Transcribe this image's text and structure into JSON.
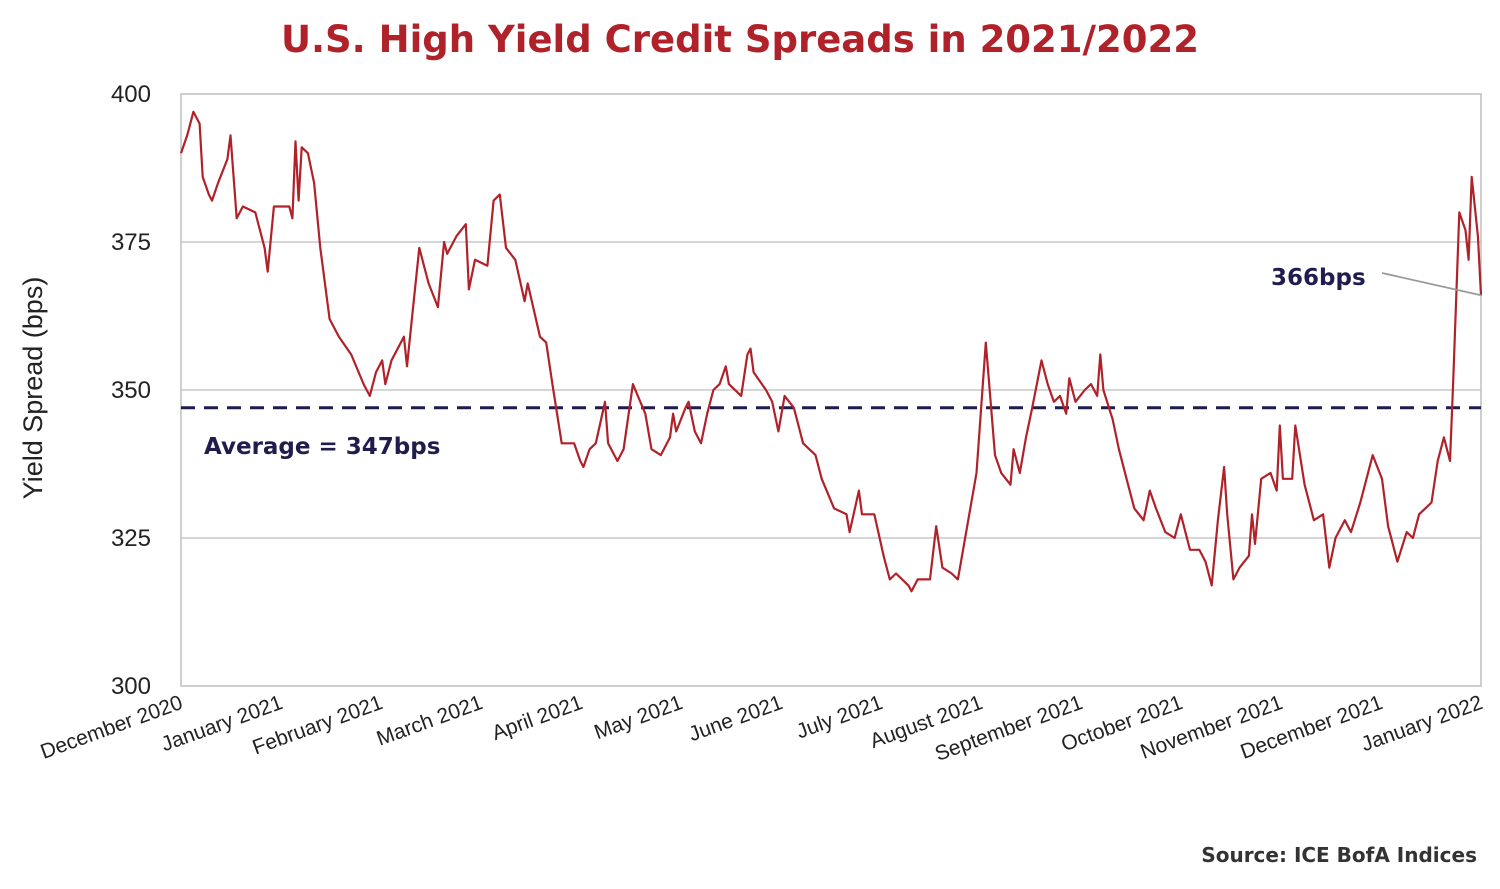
{
  "chart_data": {
    "type": "line",
    "title": "U.S. High Yield Credit Spreads in 2021/2022",
    "ylabel": "Yield Spread (bps)",
    "xlabel": "",
    "ylim": [
      300,
      400
    ],
    "yticks": [
      "300",
      "325",
      "350",
      "375",
      "400"
    ],
    "xticks": [
      "December 2020",
      "January 2021",
      "February 2021",
      "March 2021",
      "April 2021",
      "May 2021",
      "June 2021",
      "July 2021",
      "August 2021",
      "September 2021",
      "October 2021",
      "November 2021",
      "December 2021",
      "January 2022"
    ],
    "x_range": [
      "2020-12-01",
      "2022-01-25"
    ],
    "grid": true,
    "color": "#b0222a",
    "average": {
      "value": 347,
      "label": "Average = 347bps",
      "color": "#1f1d4d"
    },
    "last_label": "366bps",
    "source": "Source: ICE BofA Indices",
    "series": [
      {
        "values": [
          [
            "2020-12-01",
            390
          ],
          [
            "2020-12-03",
            393
          ],
          [
            "2020-12-05",
            397
          ],
          [
            "2020-12-07",
            395
          ],
          [
            "2020-12-08",
            386
          ],
          [
            "2020-12-10",
            383
          ],
          [
            "2020-12-11",
            382
          ],
          [
            "2020-12-13",
            385
          ],
          [
            "2020-12-16",
            389
          ],
          [
            "2020-12-17",
            393
          ],
          [
            "2020-12-19",
            379
          ],
          [
            "2020-12-21",
            381
          ],
          [
            "2020-12-25",
            380
          ],
          [
            "2020-12-28",
            374
          ],
          [
            "2020-12-29",
            370
          ],
          [
            "2020-12-31",
            381
          ],
          [
            "2021-01-05",
            381
          ],
          [
            "2021-01-06",
            379
          ],
          [
            "2021-01-07",
            392
          ],
          [
            "2021-01-08",
            382
          ],
          [
            "2021-01-09",
            391
          ],
          [
            "2021-01-11",
            390
          ],
          [
            "2021-01-13",
            385
          ],
          [
            "2021-01-15",
            374
          ],
          [
            "2021-01-18",
            362
          ],
          [
            "2021-01-21",
            359
          ],
          [
            "2021-01-25",
            356
          ],
          [
            "2021-01-29",
            351
          ],
          [
            "2021-01-31",
            349
          ],
          [
            "2021-02-02",
            353
          ],
          [
            "2021-02-04",
            355
          ],
          [
            "2021-02-05",
            351
          ],
          [
            "2021-02-07",
            355
          ],
          [
            "2021-02-11",
            359
          ],
          [
            "2021-02-12",
            354
          ],
          [
            "2021-02-14",
            364
          ],
          [
            "2021-02-16",
            374
          ],
          [
            "2021-02-19",
            368
          ],
          [
            "2021-02-22",
            364
          ],
          [
            "2021-02-24",
            375
          ],
          [
            "2021-02-25",
            373
          ],
          [
            "2021-02-28",
            376
          ],
          [
            "2021-03-03",
            378
          ],
          [
            "2021-03-04",
            367
          ],
          [
            "2021-03-06",
            372
          ],
          [
            "2021-03-10",
            371
          ],
          [
            "2021-03-12",
            382
          ],
          [
            "2021-03-14",
            383
          ],
          [
            "2021-03-16",
            374
          ],
          [
            "2021-03-19",
            372
          ],
          [
            "2021-03-22",
            365
          ],
          [
            "2021-03-23",
            368
          ],
          [
            "2021-03-27",
            359
          ],
          [
            "2021-03-29",
            358
          ],
          [
            "2021-03-31",
            351
          ],
          [
            "2021-04-03",
            341
          ],
          [
            "2021-04-07",
            341
          ],
          [
            "2021-04-09",
            338
          ],
          [
            "2021-04-10",
            337
          ],
          [
            "2021-04-12",
            340
          ],
          [
            "2021-04-14",
            341
          ],
          [
            "2021-04-17",
            348
          ],
          [
            "2021-04-18",
            341
          ],
          [
            "2021-04-21",
            338
          ],
          [
            "2021-04-23",
            340
          ],
          [
            "2021-04-26",
            351
          ],
          [
            "2021-04-30",
            346
          ],
          [
            "2021-05-02",
            340
          ],
          [
            "2021-05-05",
            339
          ],
          [
            "2021-05-08",
            342
          ],
          [
            "2021-05-09",
            346
          ],
          [
            "2021-05-10",
            343
          ],
          [
            "2021-05-13",
            347
          ],
          [
            "2021-05-14",
            348
          ],
          [
            "2021-05-16",
            343
          ],
          [
            "2021-05-18",
            341
          ],
          [
            "2021-05-20",
            346
          ],
          [
            "2021-05-22",
            350
          ],
          [
            "2021-05-24",
            351
          ],
          [
            "2021-05-26",
            354
          ],
          [
            "2021-05-27",
            351
          ],
          [
            "2021-05-31",
            349
          ],
          [
            "2021-06-02",
            356
          ],
          [
            "2021-06-03",
            357
          ],
          [
            "2021-06-04",
            353
          ],
          [
            "2021-06-08",
            350
          ],
          [
            "2021-06-10",
            348
          ],
          [
            "2021-06-12",
            343
          ],
          [
            "2021-06-14",
            349
          ],
          [
            "2021-06-17",
            347
          ],
          [
            "2021-06-20",
            341
          ],
          [
            "2021-06-24",
            339
          ],
          [
            "2021-06-26",
            335
          ],
          [
            "2021-06-30",
            330
          ],
          [
            "2021-07-04",
            329
          ],
          [
            "2021-07-05",
            326
          ],
          [
            "2021-07-08",
            333
          ],
          [
            "2021-07-09",
            329
          ],
          [
            "2021-07-13",
            329
          ],
          [
            "2021-07-16",
            322
          ],
          [
            "2021-07-18",
            318
          ],
          [
            "2021-07-20",
            319
          ],
          [
            "2021-07-24",
            317
          ],
          [
            "2021-07-25",
            316
          ],
          [
            "2021-07-27",
            318
          ],
          [
            "2021-07-31",
            318
          ],
          [
            "2021-08-02",
            327
          ],
          [
            "2021-08-04",
            320
          ],
          [
            "2021-08-07",
            319
          ],
          [
            "2021-08-09",
            318
          ],
          [
            "2021-08-12",
            327
          ],
          [
            "2021-08-15",
            336
          ],
          [
            "2021-08-18",
            358
          ],
          [
            "2021-08-21",
            339
          ],
          [
            "2021-08-23",
            336
          ],
          [
            "2021-08-26",
            334
          ],
          [
            "2021-08-27",
            340
          ],
          [
            "2021-08-29",
            336
          ],
          [
            "2021-08-31",
            342
          ],
          [
            "2021-09-02",
            347
          ],
          [
            "2021-09-05",
            355
          ],
          [
            "2021-09-07",
            351
          ],
          [
            "2021-09-09",
            348
          ],
          [
            "2021-09-11",
            349
          ],
          [
            "2021-09-13",
            346
          ],
          [
            "2021-09-14",
            352
          ],
          [
            "2021-09-16",
            348
          ],
          [
            "2021-09-19",
            350
          ],
          [
            "2021-09-21",
            351
          ],
          [
            "2021-09-23",
            349
          ],
          [
            "2021-09-24",
            356
          ],
          [
            "2021-09-25",
            350
          ],
          [
            "2021-09-28",
            345
          ],
          [
            "2021-09-30",
            340
          ],
          [
            "2021-10-03",
            334
          ],
          [
            "2021-10-05",
            330
          ],
          [
            "2021-10-08",
            328
          ],
          [
            "2021-10-10",
            333
          ],
          [
            "2021-10-12",
            330
          ],
          [
            "2021-10-15",
            326
          ],
          [
            "2021-10-18",
            325
          ],
          [
            "2021-10-20",
            329
          ],
          [
            "2021-10-23",
            323
          ],
          [
            "2021-10-26",
            323
          ],
          [
            "2021-10-28",
            321
          ],
          [
            "2021-10-30",
            317
          ],
          [
            "2021-11-01",
            328
          ],
          [
            "2021-11-03",
            337
          ],
          [
            "2021-11-04",
            329
          ],
          [
            "2021-11-06",
            318
          ],
          [
            "2021-11-08",
            320
          ],
          [
            "2021-11-11",
            322
          ],
          [
            "2021-11-12",
            329
          ],
          [
            "2021-11-13",
            324
          ],
          [
            "2021-11-15",
            335
          ],
          [
            "2021-11-18",
            336
          ],
          [
            "2021-11-20",
            333
          ],
          [
            "2021-11-21",
            344
          ],
          [
            "2021-11-22",
            335
          ],
          [
            "2021-11-25",
            335
          ],
          [
            "2021-11-26",
            344
          ],
          [
            "2021-11-29",
            334
          ],
          [
            "2021-12-02",
            328
          ],
          [
            "2021-12-05",
            329
          ],
          [
            "2021-12-07",
            320
          ],
          [
            "2021-12-09",
            325
          ],
          [
            "2021-12-12",
            328
          ],
          [
            "2021-12-14",
            326
          ],
          [
            "2021-12-17",
            331
          ],
          [
            "2021-12-19",
            335
          ],
          [
            "2021-12-21",
            339
          ],
          [
            "2021-12-24",
            335
          ],
          [
            "2021-12-26",
            327
          ],
          [
            "2021-12-29",
            321
          ],
          [
            "2022-01-01",
            326
          ],
          [
            "2022-01-03",
            325
          ],
          [
            "2022-01-05",
            329
          ],
          [
            "2022-01-07",
            330
          ],
          [
            "2022-01-09",
            331
          ],
          [
            "2022-01-11",
            338
          ],
          [
            "2022-01-13",
            342
          ],
          [
            "2022-01-15",
            338
          ],
          [
            "2022-01-16",
            351
          ],
          [
            "2022-01-18",
            380
          ],
          [
            "2022-01-20",
            377
          ],
          [
            "2022-01-21",
            372
          ],
          [
            "2022-01-22",
            386
          ],
          [
            "2022-01-24",
            376
          ],
          [
            "2022-01-25",
            366
          ]
        ]
      }
    ]
  }
}
